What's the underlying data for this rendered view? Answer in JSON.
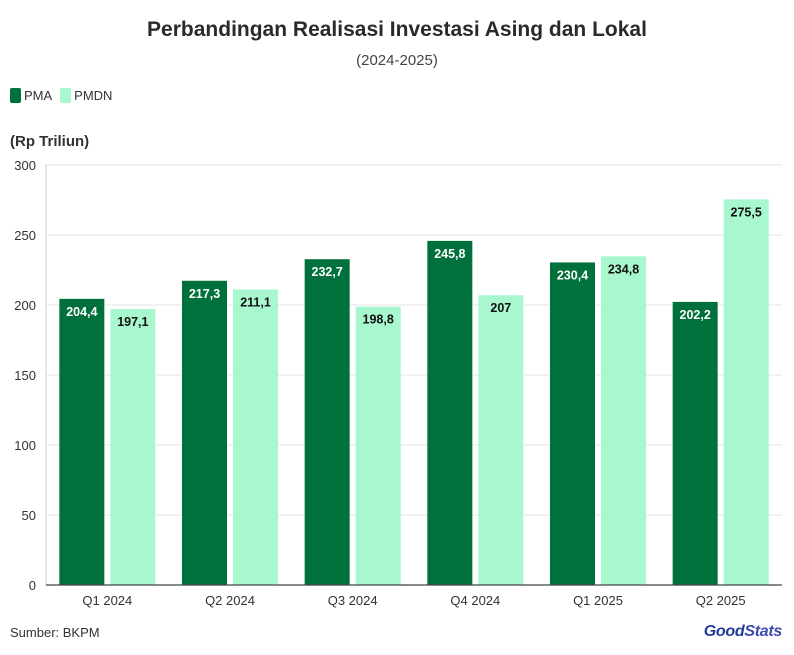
{
  "header": {
    "title": "Perbandingan Realisasi Investasi Asing dan Lokal",
    "subtitle": "(2024-2025)"
  },
  "unit_label": "(Rp Triliun)",
  "source": "Sumber: BKPM",
  "brand": {
    "part1": "Good",
    "part2": "Stats"
  },
  "colors": {
    "pma": "#00703c",
    "pmdn": "#a8f7cf",
    "grid": "#e6e6e6",
    "axis": "#444444"
  },
  "chart_data": {
    "type": "bar",
    "categories": [
      "Q1 2024",
      "Q2 2024",
      "Q3 2024",
      "Q4 2024",
      "Q1 2025",
      "Q2 2025"
    ],
    "series": [
      {
        "name": "PMA",
        "values": [
          204.4,
          217.3,
          232.7,
          245.8,
          230.4,
          202.2
        ],
        "labels": [
          "204,4",
          "217,3",
          "232,7",
          "245,8",
          "230,4",
          "202,2"
        ]
      },
      {
        "name": "PMDN",
        "values": [
          197.1,
          211.1,
          198.8,
          207,
          234.8,
          275.5
        ],
        "labels": [
          "197,1",
          "211,1",
          "198,8",
          "207",
          "234,8",
          "275,5"
        ]
      }
    ],
    "ylim": [
      0,
      300
    ],
    "yticks": [
      0,
      50,
      100,
      150,
      200,
      250,
      300
    ],
    "ylabel": "(Rp Triliun)",
    "grid": true,
    "legend": "top-left"
  }
}
